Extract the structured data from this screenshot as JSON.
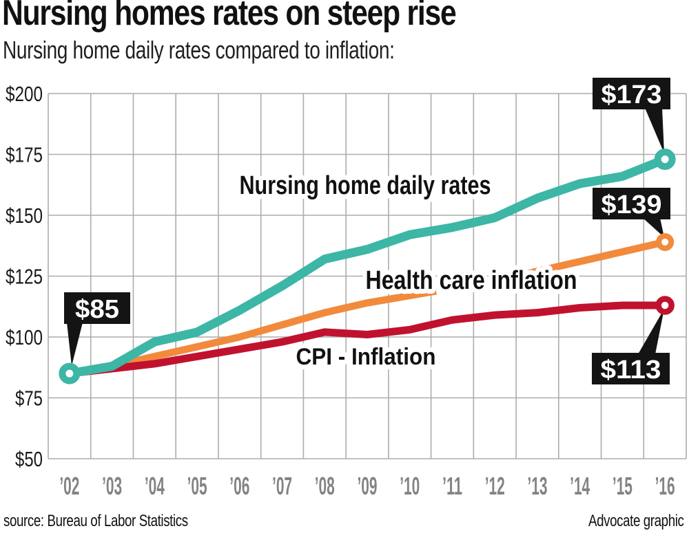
{
  "header": {
    "title": "Nursing homes rates on steep rise",
    "subtitle": "Nursing home daily rates compared to inflation:"
  },
  "footer": {
    "source": "source: Bureau of Labor Statistics",
    "credit": "Advocate graphic"
  },
  "chart_data": {
    "type": "line",
    "title": "Nursing homes rates on steep rise",
    "subtitle": "Nursing home daily rates compared to inflation:",
    "categories": [
      "’02",
      "’03",
      "’04",
      "’05",
      "’06",
      "’07",
      "’08",
      "’09",
      "’10",
      "’11",
      "’12",
      "’13",
      "’14",
      "’15",
      "’16"
    ],
    "ylim": [
      50,
      200
    ],
    "ytick_step": 25,
    "ytick_labels": [
      "$200",
      "$175",
      "$150",
      "$125",
      "$100",
      "$75",
      "$50"
    ],
    "grid": true,
    "legend_position": "inline-labels",
    "series": [
      {
        "name": "Nursing home daily rates",
        "color": "#3DB6A6",
        "values": [
          85,
          88,
          98,
          102,
          111,
          121,
          132,
          136,
          142,
          145,
          149,
          157,
          163,
          166,
          173
        ]
      },
      {
        "name": "Health care inflation",
        "color": "#F28A3C",
        "values": [
          85,
          88,
          92,
          96,
          100,
          105,
          110,
          114,
          117,
          120,
          123,
          127,
          131,
          135,
          139
        ]
      },
      {
        "name": "CPI - Inflation",
        "color": "#C0122F",
        "values": [
          85,
          87,
          89,
          92,
          95,
          98,
          102,
          101,
          103,
          107,
          109,
          110,
          112,
          113,
          113
        ]
      }
    ],
    "callouts": [
      {
        "series": 0,
        "point": "first",
        "text": "$85"
      },
      {
        "series": 0,
        "point": "last",
        "text": "$173"
      },
      {
        "series": 1,
        "point": "last",
        "text": "$139"
      },
      {
        "series": 2,
        "point": "last",
        "text": "$113"
      }
    ],
    "colors": {
      "grid": "#ACACAC",
      "ytick_text": "#1a1a1a",
      "xtick_text": "#838383",
      "callout_bg": "#141414",
      "callout_text": "#ffffff",
      "series_label_text": "#111111"
    }
  }
}
